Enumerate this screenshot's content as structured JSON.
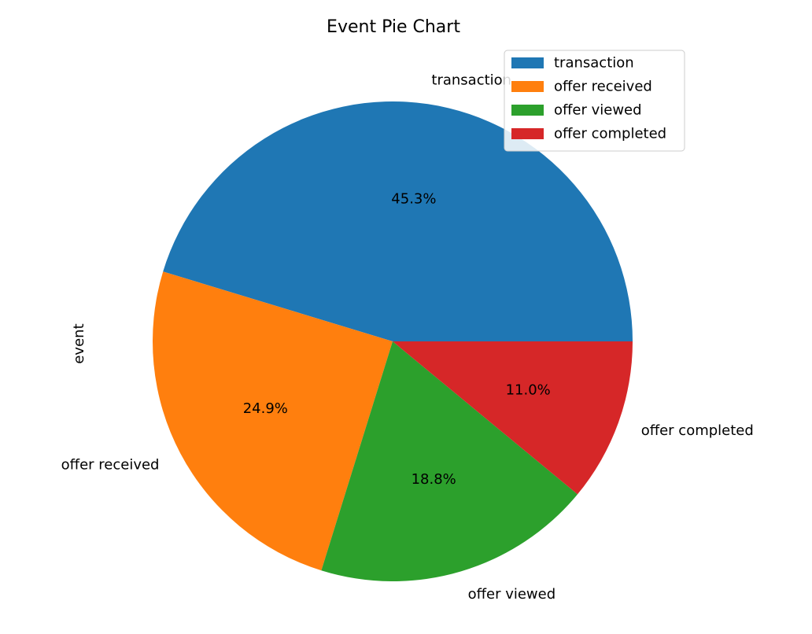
{
  "chart_data": {
    "type": "pie",
    "title": "Event Pie Chart",
    "ylabel": "event",
    "categories": [
      "transaction",
      "offer received",
      "offer viewed",
      "offer completed"
    ],
    "values": [
      45.3,
      24.9,
      18.8,
      11.0
    ],
    "pct_labels": [
      "45.3%",
      "24.9%",
      "18.8%",
      "11.0%"
    ],
    "colors": [
      "#1f77b4",
      "#ff7f0e",
      "#2ca02c",
      "#d62728"
    ],
    "start_angle_deg": 0,
    "direction": "counterclockwise",
    "legend": {
      "placement": "top-right",
      "entries": [
        "transaction",
        "offer received",
        "offer viewed",
        "offer completed"
      ]
    }
  }
}
